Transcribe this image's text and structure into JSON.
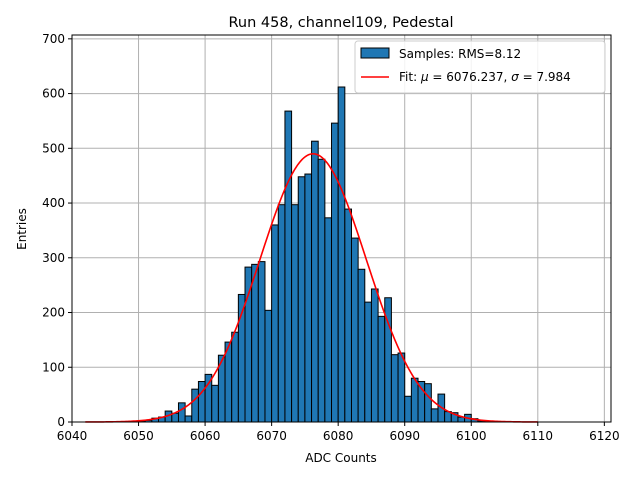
{
  "chart_data": {
    "type": "bar",
    "title": "Run 458, channel109, Pedestal",
    "xlabel": "ADC Counts",
    "ylabel": "Entries",
    "xlim": [
      6040,
      6121
    ],
    "ylim": [
      0,
      707
    ],
    "x_ticks": [
      6040,
      6050,
      6060,
      6070,
      6080,
      6090,
      6100,
      6110,
      6120
    ],
    "y_ticks": [
      0,
      100,
      200,
      300,
      400,
      500,
      600,
      700
    ],
    "grid": true,
    "legend_position": "top-right",
    "bar_color": "#1f77b4",
    "fit_color": "#ff0000",
    "legend": {
      "samples_label": "Samples: RMS=8.12",
      "fit_prefix": "Fit: ",
      "fit_mu_symbol": "μ",
      "fit_mu_value": " = 6076.237, ",
      "fit_sigma_symbol": "σ",
      "fit_sigma_value": " = 7.984"
    },
    "histogram": {
      "bin_edges_start": 6049,
      "bin_width": 1,
      "counts": [
        1,
        2,
        3,
        7,
        9,
        20,
        16,
        35,
        11,
        60,
        74,
        87,
        67,
        122,
        146,
        164,
        233,
        283,
        288,
        293,
        204,
        360,
        397,
        568,
        397,
        448,
        453,
        513,
        480,
        373,
        546,
        612,
        389,
        336,
        279,
        219,
        243,
        193,
        227,
        123,
        126,
        47,
        80,
        74,
        70,
        24,
        51,
        19,
        17,
        9,
        14,
        6,
        2,
        1,
        1
      ]
    },
    "fit": {
      "mu": 6076.237,
      "sigma": 7.984,
      "amplitude": 490,
      "x_range": [
        6042,
        6110
      ]
    }
  }
}
